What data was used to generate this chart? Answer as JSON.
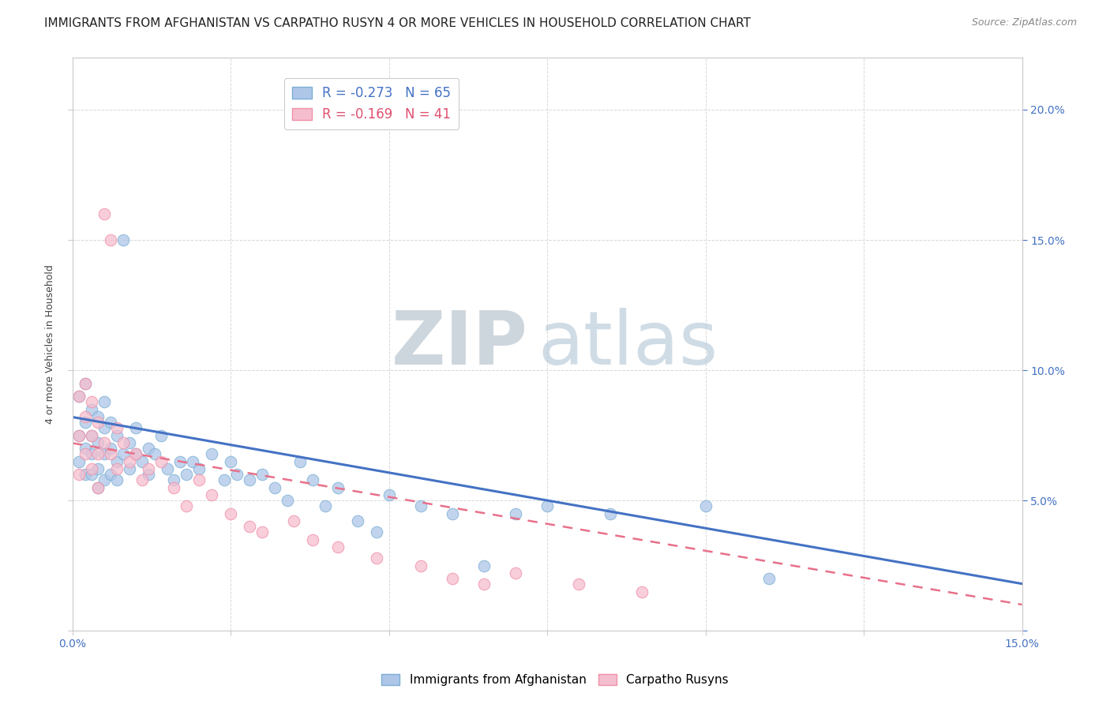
{
  "title": "IMMIGRANTS FROM AFGHANISTAN VS CARPATHO RUSYN 4 OR MORE VEHICLES IN HOUSEHOLD CORRELATION CHART",
  "source": "Source: ZipAtlas.com",
  "ylabel": "4 or more Vehicles in Household",
  "legend_blue_r": "R = -0.273",
  "legend_blue_n": "N = 65",
  "legend_pink_r": "R = -0.169",
  "legend_pink_n": "N = 41",
  "legend_blue_label": "Immigrants from Afghanistan",
  "legend_pink_label": "Carpatho Rusyns",
  "blue_scatter_x": [
    0.001,
    0.001,
    0.001,
    0.002,
    0.002,
    0.002,
    0.002,
    0.003,
    0.003,
    0.003,
    0.003,
    0.004,
    0.004,
    0.004,
    0.004,
    0.005,
    0.005,
    0.005,
    0.005,
    0.006,
    0.006,
    0.006,
    0.007,
    0.007,
    0.007,
    0.008,
    0.008,
    0.009,
    0.009,
    0.01,
    0.01,
    0.011,
    0.012,
    0.012,
    0.013,
    0.014,
    0.015,
    0.016,
    0.017,
    0.018,
    0.019,
    0.02,
    0.022,
    0.024,
    0.025,
    0.026,
    0.028,
    0.03,
    0.032,
    0.034,
    0.036,
    0.038,
    0.04,
    0.042,
    0.045,
    0.048,
    0.05,
    0.055,
    0.06,
    0.065,
    0.07,
    0.075,
    0.085,
    0.1,
    0.11
  ],
  "blue_scatter_y": [
    0.09,
    0.075,
    0.065,
    0.095,
    0.08,
    0.07,
    0.06,
    0.085,
    0.075,
    0.068,
    0.06,
    0.082,
    0.072,
    0.062,
    0.055,
    0.088,
    0.078,
    0.068,
    0.058,
    0.08,
    0.07,
    0.06,
    0.075,
    0.065,
    0.058,
    0.15,
    0.068,
    0.072,
    0.062,
    0.078,
    0.068,
    0.065,
    0.07,
    0.06,
    0.068,
    0.075,
    0.062,
    0.058,
    0.065,
    0.06,
    0.065,
    0.062,
    0.068,
    0.058,
    0.065,
    0.06,
    0.058,
    0.06,
    0.055,
    0.05,
    0.065,
    0.058,
    0.048,
    0.055,
    0.042,
    0.038,
    0.052,
    0.048,
    0.045,
    0.025,
    0.045,
    0.048,
    0.045,
    0.048,
    0.02
  ],
  "pink_scatter_x": [
    0.001,
    0.001,
    0.001,
    0.002,
    0.002,
    0.002,
    0.003,
    0.003,
    0.003,
    0.004,
    0.004,
    0.004,
    0.005,
    0.005,
    0.006,
    0.006,
    0.007,
    0.007,
    0.008,
    0.009,
    0.01,
    0.011,
    0.012,
    0.014,
    0.016,
    0.018,
    0.02,
    0.022,
    0.025,
    0.028,
    0.03,
    0.035,
    0.038,
    0.042,
    0.048,
    0.055,
    0.06,
    0.065,
    0.07,
    0.08,
    0.09
  ],
  "pink_scatter_y": [
    0.09,
    0.075,
    0.06,
    0.095,
    0.082,
    0.068,
    0.088,
    0.075,
    0.062,
    0.08,
    0.068,
    0.055,
    0.16,
    0.072,
    0.15,
    0.068,
    0.078,
    0.062,
    0.072,
    0.065,
    0.068,
    0.058,
    0.062,
    0.065,
    0.055,
    0.048,
    0.058,
    0.052,
    0.045,
    0.04,
    0.038,
    0.042,
    0.035,
    0.032,
    0.028,
    0.025,
    0.02,
    0.018,
    0.022,
    0.018,
    0.015
  ],
  "blue_line_x": [
    0.0,
    0.15
  ],
  "blue_line_y": [
    0.082,
    0.018
  ],
  "pink_line_x": [
    0.0,
    0.15
  ],
  "pink_line_y": [
    0.072,
    0.01
  ],
  "xlim": [
    0.0,
    0.15
  ],
  "ylim": [
    0.0,
    0.22
  ],
  "yticks": [
    0.0,
    0.05,
    0.1,
    0.15,
    0.2
  ],
  "ytick_labels": [
    "",
    "5.0%",
    "10.0%",
    "15.0%",
    "20.0%"
  ],
  "xticks": [
    0.0,
    0.025,
    0.05,
    0.075,
    0.1,
    0.125,
    0.15
  ],
  "xtick_labels": [
    "0.0%",
    "",
    "",
    "",
    "",
    "",
    "15.0%"
  ],
  "blue_color": "#aec6e8",
  "pink_color": "#f5bece",
  "blue_edge_color": "#7bafd4",
  "pink_edge_color": "#f090a8",
  "blue_line_color": "#4472c4",
  "pink_line_color": "#e8708a",
  "background_color": "#ffffff",
  "grid_color": "#d8d8d8",
  "title_fontsize": 11,
  "axis_label_fontsize": 9,
  "tick_fontsize": 10,
  "watermark_zip_color": "#c8d4e0",
  "watermark_atlas_color": "#c0cee0",
  "scatter_size": 110
}
